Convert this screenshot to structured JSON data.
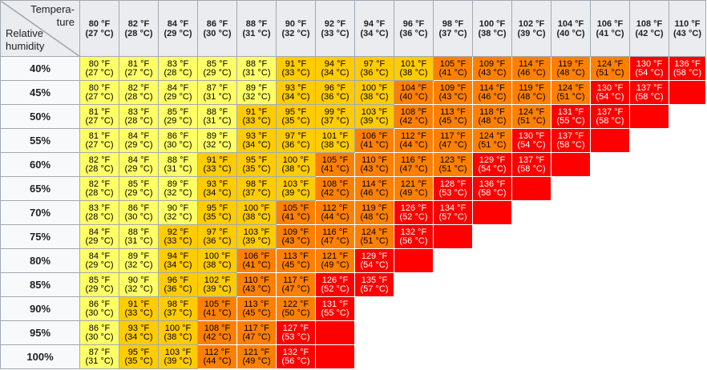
{
  "corner": {
    "top_line1": "Tempera-",
    "top_line2": "ture",
    "bottom_line1": "Relative",
    "bottom_line2": "humidity"
  },
  "colors": {
    "cat1": "#ffff66",
    "cat2": "#ffcc00",
    "cat3": "#ff8000",
    "cat4": "#ff0000"
  },
  "columns": [
    {
      "f": "80 °F",
      "c": "(27 °C)"
    },
    {
      "f": "82 °F",
      "c": "(28 °C)"
    },
    {
      "f": "84 °F",
      "c": "(29 °C)"
    },
    {
      "f": "86 °F",
      "c": "(30 °C)"
    },
    {
      "f": "88 °F",
      "c": "(31 °C)"
    },
    {
      "f": "90 °F",
      "c": "(32 °C)"
    },
    {
      "f": "92 °F",
      "c": "(33 °C)"
    },
    {
      "f": "94 °F",
      "c": "(34 °C)"
    },
    {
      "f": "96 °F",
      "c": "(36 °C)"
    },
    {
      "f": "98 °F",
      "c": "(37 °C)"
    },
    {
      "f": "100 °F",
      "c": "(38 °C)"
    },
    {
      "f": "102 °F",
      "c": "(39 °C)"
    },
    {
      "f": "104 °F",
      "c": "(40 °C)"
    },
    {
      "f": "106 °F",
      "c": "(41 °C)"
    },
    {
      "f": "108 °F",
      "c": "(42 °C)"
    },
    {
      "f": "110 °F",
      "c": "(43 °C)"
    }
  ],
  "rows": [
    {
      "label": "40%",
      "cells": [
        {
          "f": "80 °F",
          "c": "(27 °C)",
          "cat": 1
        },
        {
          "f": "81 °F",
          "c": "(27 °C)",
          "cat": 1
        },
        {
          "f": "83 °F",
          "c": "(28 °C)",
          "cat": 1
        },
        {
          "f": "85 °F",
          "c": "(29 °C)",
          "cat": 1
        },
        {
          "f": "88 °F",
          "c": "(31 °C)",
          "cat": 1
        },
        {
          "f": "91 °F",
          "c": "(33 °C)",
          "cat": 2
        },
        {
          "f": "94 °F",
          "c": "(34 °C)",
          "cat": 2
        },
        {
          "f": "97 °F",
          "c": "(36 °C)",
          "cat": 2
        },
        {
          "f": "101 °F",
          "c": "(38 °C)",
          "cat": 2
        },
        {
          "f": "105 °F",
          "c": "(41 °C)",
          "cat": 3
        },
        {
          "f": "109 °F",
          "c": "(43 °C)",
          "cat": 3
        },
        {
          "f": "114 °F",
          "c": "(46 °C)",
          "cat": 3
        },
        {
          "f": "119 °F",
          "c": "(48 °C)",
          "cat": 3
        },
        {
          "f": "124 °F",
          "c": "(51 °C)",
          "cat": 3
        },
        {
          "f": "130 °F",
          "c": "(54 °C)",
          "cat": 4
        },
        {
          "f": "136 °F",
          "c": "(58 °C)",
          "cat": 4
        }
      ]
    },
    {
      "label": "45%",
      "cells": [
        {
          "f": "80 °F",
          "c": "(27 °C)",
          "cat": 1
        },
        {
          "f": "82 °F",
          "c": "(28 °C)",
          "cat": 1
        },
        {
          "f": "84 °F",
          "c": "(29 °C)",
          "cat": 1
        },
        {
          "f": "87 °F",
          "c": "(31 °C)",
          "cat": 1
        },
        {
          "f": "89 °F",
          "c": "(32 °C)",
          "cat": 1
        },
        {
          "f": "93 °F",
          "c": "(34 °C)",
          "cat": 2
        },
        {
          "f": "96 °F",
          "c": "(36 °C)",
          "cat": 2
        },
        {
          "f": "100 °F",
          "c": "(38 °C)",
          "cat": 2
        },
        {
          "f": "104 °F",
          "c": "(40 °C)",
          "cat": 3
        },
        {
          "f": "109 °F",
          "c": "(43 °C)",
          "cat": 3
        },
        {
          "f": "114 °F",
          "c": "(46 °C)",
          "cat": 3
        },
        {
          "f": "119 °F",
          "c": "(48 °C)",
          "cat": 3
        },
        {
          "f": "124 °F",
          "c": "(51 °C)",
          "cat": 3
        },
        {
          "f": "130 °F",
          "c": "(54 °C)",
          "cat": 4
        },
        {
          "f": "137 °F",
          "c": "(58 °C)",
          "cat": 4
        },
        {
          "cat": 4
        }
      ]
    },
    {
      "label": "50%",
      "cells": [
        {
          "f": "81 °F",
          "c": "(27 °C)",
          "cat": 1
        },
        {
          "f": "83 °F",
          "c": "(28 °C)",
          "cat": 1
        },
        {
          "f": "85 °F",
          "c": "(29 °C)",
          "cat": 1
        },
        {
          "f": "88 °F",
          "c": "(31 °C)",
          "cat": 1
        },
        {
          "f": "91 °F",
          "c": "(33 °C)",
          "cat": 2
        },
        {
          "f": "95 °F",
          "c": "(35 °C)",
          "cat": 2
        },
        {
          "f": "99 °F",
          "c": "(37 °C)",
          "cat": 2
        },
        {
          "f": "103 °F",
          "c": "(39 °C)",
          "cat": 2
        },
        {
          "f": "108 °F",
          "c": "(42 °C)",
          "cat": 3
        },
        {
          "f": "113 °F",
          "c": "(45 °C)",
          "cat": 3
        },
        {
          "f": "118 °F",
          "c": "(48 °C)",
          "cat": 3
        },
        {
          "f": "124 °F",
          "c": "(51 °C)",
          "cat": 3
        },
        {
          "f": "131 °F",
          "c": "(55 °C)",
          "cat": 4
        },
        {
          "f": "137 °F",
          "c": "(58 °C)",
          "cat": 4
        },
        {
          "cat": 4
        },
        {
          "cat": 0
        }
      ]
    },
    {
      "label": "55%",
      "cells": [
        {
          "f": "81 °F",
          "c": "(27 °C)",
          "cat": 1
        },
        {
          "f": "84 °F",
          "c": "(29 °C)",
          "cat": 1
        },
        {
          "f": "86 °F",
          "c": "(30 °C)",
          "cat": 1
        },
        {
          "f": "89 °F",
          "c": "(32 °C)",
          "cat": 1
        },
        {
          "f": "93 °F",
          "c": "(34 °C)",
          "cat": 2
        },
        {
          "f": "97 °F",
          "c": "(36 °C)",
          "cat": 2
        },
        {
          "f": "101 °F",
          "c": "(38 °C)",
          "cat": 2
        },
        {
          "f": "106 °F",
          "c": "(41 °C)",
          "cat": 3
        },
        {
          "f": "112 °F",
          "c": "(44 °C)",
          "cat": 3
        },
        {
          "f": "117 °F",
          "c": "(47 °C)",
          "cat": 3
        },
        {
          "f": "124 °F",
          "c": "(51 °C)",
          "cat": 3
        },
        {
          "f": "130 °F",
          "c": "(54 °C)",
          "cat": 4
        },
        {
          "f": "137 °F",
          "c": "(58 °C)",
          "cat": 4
        },
        {
          "cat": 4
        },
        {
          "cat": 0
        },
        {
          "cat": 0
        }
      ]
    },
    {
      "label": "60%",
      "cells": [
        {
          "f": "82 °F",
          "c": "(28 °C)",
          "cat": 1
        },
        {
          "f": "84 °F",
          "c": "(29 °C)",
          "cat": 1
        },
        {
          "f": "88 °F",
          "c": "(31 °C)",
          "cat": 1
        },
        {
          "f": "91 °F",
          "c": "(33 °C)",
          "cat": 2
        },
        {
          "f": "95 °F",
          "c": "(35 °C)",
          "cat": 2
        },
        {
          "f": "100 °F",
          "c": "(38 °C)",
          "cat": 2
        },
        {
          "f": "105 °F",
          "c": "(41 °C)",
          "cat": 3
        },
        {
          "f": "110 °F",
          "c": "(43 °C)",
          "cat": 3
        },
        {
          "f": "116 °F",
          "c": "(47 °C)",
          "cat": 3
        },
        {
          "f": "123 °F",
          "c": "(51 °C)",
          "cat": 3
        },
        {
          "f": "129 °F",
          "c": "(54 °C)",
          "cat": 4
        },
        {
          "f": "137 °F",
          "c": "(58 °C)",
          "cat": 4
        },
        {
          "cat": 4
        },
        {
          "cat": 0
        },
        {
          "cat": 0
        },
        {
          "cat": 0
        }
      ]
    },
    {
      "label": "65%",
      "cells": [
        {
          "f": "82 °F",
          "c": "(28 °C)",
          "cat": 1
        },
        {
          "f": "85 °F",
          "c": "(29 °C)",
          "cat": 1
        },
        {
          "f": "89 °F",
          "c": "(32 °C)",
          "cat": 1
        },
        {
          "f": "93 °F",
          "c": "(34 °C)",
          "cat": 2
        },
        {
          "f": "98 °F",
          "c": "(37 °C)",
          "cat": 2
        },
        {
          "f": "103 °F",
          "c": "(39 °C)",
          "cat": 2
        },
        {
          "f": "108 °F",
          "c": "(42 °C)",
          "cat": 3
        },
        {
          "f": "114 °F",
          "c": "(46 °C)",
          "cat": 3
        },
        {
          "f": "121 °F",
          "c": "(49 °C)",
          "cat": 3
        },
        {
          "f": "128 °F",
          "c": "(53 °C)",
          "cat": 4
        },
        {
          "f": "136 °F",
          "c": "(58 °C)",
          "cat": 4
        },
        {
          "cat": 4
        },
        {
          "cat": 0
        },
        {
          "cat": 0
        },
        {
          "cat": 0
        },
        {
          "cat": 0
        }
      ]
    },
    {
      "label": "70%",
      "cells": [
        {
          "f": "83 °F",
          "c": "(28 °C)",
          "cat": 1
        },
        {
          "f": "86 °F",
          "c": "(30 °C)",
          "cat": 1
        },
        {
          "f": "90 °F",
          "c": "(32 °C)",
          "cat": 1
        },
        {
          "f": "95 °F",
          "c": "(35 °C)",
          "cat": 2
        },
        {
          "f": "100 °F",
          "c": "(38 °C)",
          "cat": 2
        },
        {
          "f": "105 °F",
          "c": "(41 °C)",
          "cat": 3
        },
        {
          "f": "112 °F",
          "c": "(44 °C)",
          "cat": 3
        },
        {
          "f": "119 °F",
          "c": "(48 °C)",
          "cat": 3
        },
        {
          "f": "126 °F",
          "c": "(52 °C)",
          "cat": 4
        },
        {
          "f": "134 °F",
          "c": "(57 °C)",
          "cat": 4
        },
        {
          "cat": 4
        },
        {
          "cat": 0
        },
        {
          "cat": 0
        },
        {
          "cat": 0
        },
        {
          "cat": 0
        },
        {
          "cat": 0
        }
      ]
    },
    {
      "label": "75%",
      "cells": [
        {
          "f": "84 °F",
          "c": "(29 °C)",
          "cat": 1
        },
        {
          "f": "88 °F",
          "c": "(31 °C)",
          "cat": 1
        },
        {
          "f": "92 °F",
          "c": "(33 °C)",
          "cat": 2
        },
        {
          "f": "97 °F",
          "c": "(36 °C)",
          "cat": 2
        },
        {
          "f": "103 °F",
          "c": "(39 °C)",
          "cat": 2
        },
        {
          "f": "109 °F",
          "c": "(43 °C)",
          "cat": 3
        },
        {
          "f": "116 °F",
          "c": "(47 °C)",
          "cat": 3
        },
        {
          "f": "124 °F",
          "c": "(51 °C)",
          "cat": 3
        },
        {
          "f": "132 °F",
          "c": "(56 °C)",
          "cat": 4
        },
        {
          "cat": 4
        },
        {
          "cat": 0
        },
        {
          "cat": 0
        },
        {
          "cat": 0
        },
        {
          "cat": 0
        },
        {
          "cat": 0
        },
        {
          "cat": 0
        }
      ]
    },
    {
      "label": "80%",
      "cells": [
        {
          "f": "84 °F",
          "c": "(29 °C)",
          "cat": 1
        },
        {
          "f": "89 °F",
          "c": "(32 °C)",
          "cat": 1
        },
        {
          "f": "94 °F",
          "c": "(34 °C)",
          "cat": 2
        },
        {
          "f": "100 °F",
          "c": "(38 °C)",
          "cat": 2
        },
        {
          "f": "106 °F",
          "c": "(41 °C)",
          "cat": 3
        },
        {
          "f": "113 °F",
          "c": "(45 °C)",
          "cat": 3
        },
        {
          "f": "121 °F",
          "c": "(49 °C)",
          "cat": 3
        },
        {
          "f": "129 °F",
          "c": "(54 °C)",
          "cat": 4
        },
        {
          "cat": 4
        },
        {
          "cat": 0
        },
        {
          "cat": 0
        },
        {
          "cat": 0
        },
        {
          "cat": 0
        },
        {
          "cat": 0
        },
        {
          "cat": 0
        },
        {
          "cat": 0
        }
      ]
    },
    {
      "label": "85%",
      "cells": [
        {
          "f": "85 °F",
          "c": "(29 °C)",
          "cat": 1
        },
        {
          "f": "90 °F",
          "c": "(32 °C)",
          "cat": 1
        },
        {
          "f": "96 °F",
          "c": "(36 °C)",
          "cat": 2
        },
        {
          "f": "102 °F",
          "c": "(39 °C)",
          "cat": 2
        },
        {
          "f": "110 °F",
          "c": "(43 °C)",
          "cat": 3
        },
        {
          "f": "117 °F",
          "c": "(47 °C)",
          "cat": 3
        },
        {
          "f": "126 °F",
          "c": "(52 °C)",
          "cat": 4
        },
        {
          "f": "135 °F",
          "c": "(57 °C)",
          "cat": 4
        },
        {
          "cat": 0
        },
        {
          "cat": 0
        },
        {
          "cat": 0
        },
        {
          "cat": 0
        },
        {
          "cat": 0
        },
        {
          "cat": 0
        },
        {
          "cat": 0
        },
        {
          "cat": 0
        }
      ]
    },
    {
      "label": "90%",
      "cells": [
        {
          "f": "86 °F",
          "c": "(30 °C)",
          "cat": 1
        },
        {
          "f": "91 °F",
          "c": "(33 °C)",
          "cat": 2
        },
        {
          "f": "98 °F",
          "c": "(37 °C)",
          "cat": 2
        },
        {
          "f": "105 °F",
          "c": "(41 °C)",
          "cat": 3
        },
        {
          "f": "113 °F",
          "c": "(45 °C)",
          "cat": 3
        },
        {
          "f": "122 °F",
          "c": "(50 °C)",
          "cat": 3
        },
        {
          "f": "131 °F",
          "c": "(55 °C)",
          "cat": 4
        },
        {
          "cat": 0
        },
        {
          "cat": 0
        },
        {
          "cat": 0
        },
        {
          "cat": 0
        },
        {
          "cat": 0
        },
        {
          "cat": 0
        },
        {
          "cat": 0
        },
        {
          "cat": 0
        },
        {
          "cat": 0
        }
      ]
    },
    {
      "label": "95%",
      "cells": [
        {
          "f": "86 °F",
          "c": "(30 °C)",
          "cat": 1
        },
        {
          "f": "93 °F",
          "c": "(34 °C)",
          "cat": 2
        },
        {
          "f": "100 °F",
          "c": "(38 °C)",
          "cat": 2
        },
        {
          "f": "108 °F",
          "c": "(42 °C)",
          "cat": 3
        },
        {
          "f": "117 °F",
          "c": "(47 °C)",
          "cat": 3
        },
        {
          "f": "127 °F",
          "c": "(53 °C)",
          "cat": 4
        },
        {
          "cat": 4
        },
        {
          "cat": 0
        },
        {
          "cat": 0
        },
        {
          "cat": 0
        },
        {
          "cat": 0
        },
        {
          "cat": 0
        },
        {
          "cat": 0
        },
        {
          "cat": 0
        },
        {
          "cat": 0
        },
        {
          "cat": 0
        }
      ]
    },
    {
      "label": "100%",
      "cells": [
        {
          "f": "87 °F",
          "c": "(31 °C)",
          "cat": 1
        },
        {
          "f": "95 °F",
          "c": "(35 °C)",
          "cat": 2
        },
        {
          "f": "103 °F",
          "c": "(39 °C)",
          "cat": 2
        },
        {
          "f": "112 °F",
          "c": "(44 °C)",
          "cat": 3
        },
        {
          "f": "121 °F",
          "c": "(49 °C)",
          "cat": 3
        },
        {
          "f": "132 °F",
          "c": "(56 °C)",
          "cat": 4
        },
        {
          "cat": 4
        },
        {
          "cat": 0
        },
        {
          "cat": 0
        },
        {
          "cat": 0
        },
        {
          "cat": 0
        },
        {
          "cat": 0
        },
        {
          "cat": 0
        },
        {
          "cat": 0
        },
        {
          "cat": 0
        },
        {
          "cat": 0
        }
      ]
    }
  ]
}
